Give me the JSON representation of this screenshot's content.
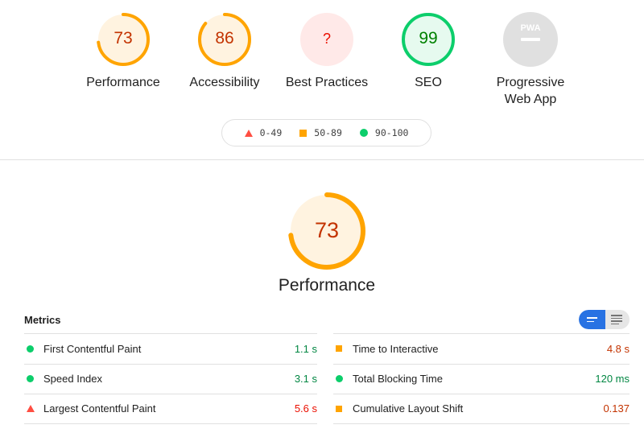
{
  "categories": [
    {
      "key": "performance",
      "score": "73",
      "label": "Performance",
      "fraction": 0.73,
      "color": "#ffa400",
      "fill": "#fff3e0",
      "text_color": "#c33300"
    },
    {
      "key": "accessibility",
      "score": "86",
      "label": "Accessibility",
      "fraction": 0.86,
      "color": "#ffa400",
      "fill": "#fff3e0",
      "text_color": "#c33300"
    },
    {
      "key": "best-practices",
      "score": "?",
      "label": "Best Practices",
      "fraction": 0,
      "color": "#ff4e42",
      "fill": "#ffe9e8",
      "text_color": "#eb0f00"
    },
    {
      "key": "seo",
      "score": "99",
      "label": "SEO",
      "fraction": 0.99,
      "color": "#0cce6b",
      "fill": "#e6faef",
      "text_color": "#008000"
    },
    {
      "key": "pwa",
      "score": "",
      "label_line1": "Progressive",
      "label_line2": "Web App",
      "fraction": 0,
      "color": "#e0e0e0",
      "fill": "#e0e0e0",
      "badge_text": "PWA"
    }
  ],
  "legend": [
    {
      "range": "0-49",
      "icon": "triangle-icon",
      "color": "#ff4e42"
    },
    {
      "range": "50-89",
      "icon": "square-icon",
      "color": "#ffa400"
    },
    {
      "range": "90-100",
      "icon": "circle-icon",
      "color": "#0cce6b"
    }
  ],
  "section": {
    "title": "Performance",
    "score": "73",
    "fraction": 0.73
  },
  "metrics": {
    "title": "Metrics",
    "left": [
      {
        "name": "First Contentful Paint",
        "value": "1.1 s",
        "status": "pass"
      },
      {
        "name": "Speed Index",
        "value": "3.1 s",
        "status": "pass"
      },
      {
        "name": "Largest Contentful Paint",
        "value": "5.6 s",
        "status": "fail"
      }
    ],
    "right": [
      {
        "name": "Time to Interactive",
        "value": "4.8 s",
        "status": "average"
      },
      {
        "name": "Total Blocking Time",
        "value": "120 ms",
        "status": "pass"
      },
      {
        "name": "Cumulative Layout Shift",
        "value": "0.137",
        "status": "average"
      }
    ]
  },
  "view_toggle": {
    "options": [
      "compact-view-icon",
      "expanded-view-icon"
    ],
    "selected": 0
  }
}
